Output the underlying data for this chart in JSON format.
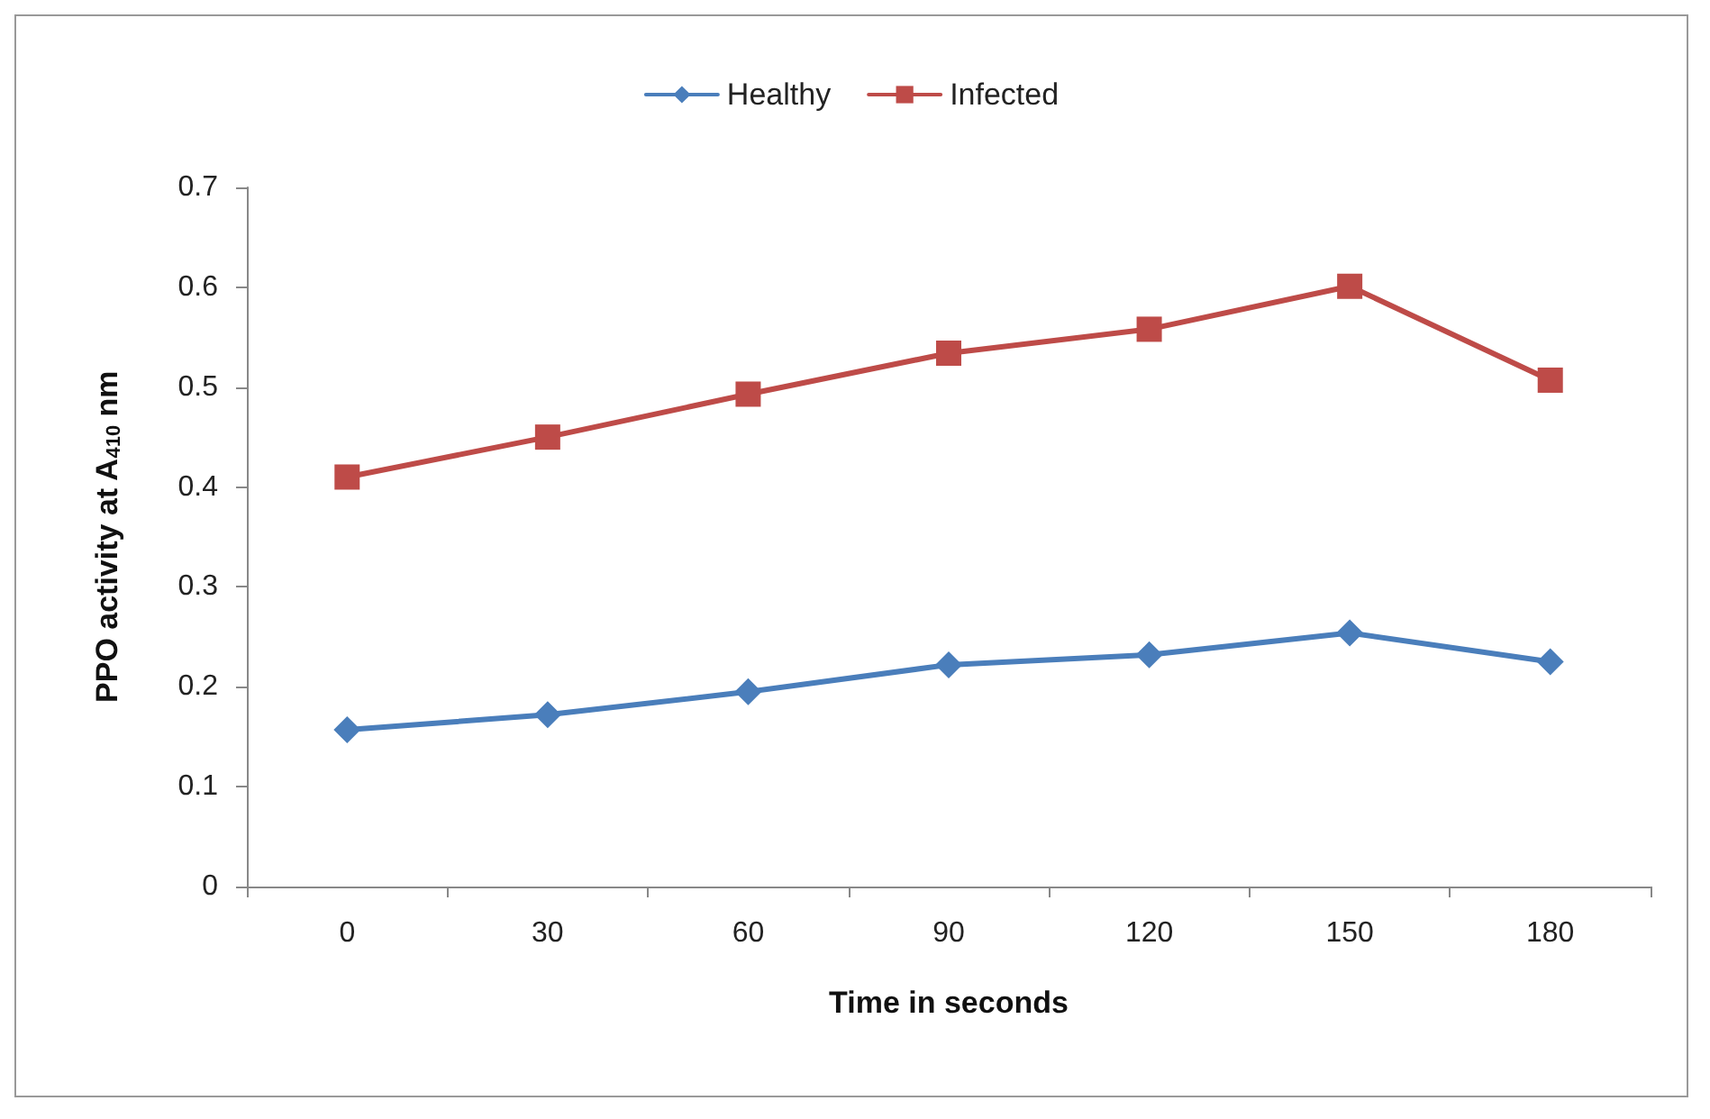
{
  "chart_data": {
    "type": "line",
    "xlabel": "Time in seconds",
    "ylabel": "PPO activity at A$_{410}$ nm",
    "categories": [
      "0",
      "30",
      "60",
      "90",
      "120",
      "150",
      "180"
    ],
    "series": [
      {
        "name": "Healthy",
        "color": "#4a7ebb",
        "marker": "diamond",
        "values": [
          0.157,
          0.172,
          0.195,
          0.222,
          0.232,
          0.254,
          0.225
        ]
      },
      {
        "name": "Infected",
        "color": "#be4b48",
        "marker": "square",
        "values": [
          0.41,
          0.45,
          0.493,
          0.534,
          0.558,
          0.601,
          0.507
        ]
      }
    ],
    "ylim": [
      0,
      0.7
    ],
    "yticks": [
      0,
      0.1,
      0.2,
      0.3,
      0.4,
      0.5,
      0.6,
      0.7
    ],
    "grid": false,
    "legend": "top",
    "line_style": "solid"
  }
}
